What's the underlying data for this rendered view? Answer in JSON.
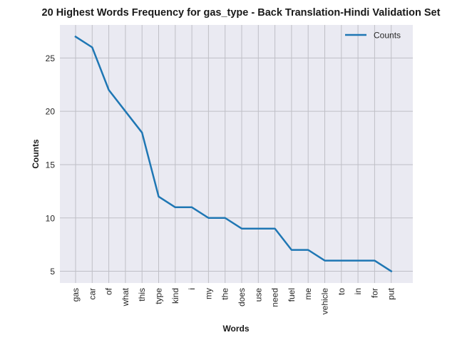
{
  "chart_data": {
    "type": "line",
    "title": "20 Highest Words Frequency for gas_type - Back Translation-Hindi Validation Set",
    "xlabel": "Words",
    "ylabel": "Counts",
    "categories": [
      "gas",
      "car",
      "of",
      "what",
      "this",
      "type",
      "kind",
      "i",
      "my",
      "the",
      "does",
      "use",
      "need",
      "fuel",
      "me",
      "vehicle",
      "to",
      "in",
      "for",
      "put"
    ],
    "series": [
      {
        "name": "Counts",
        "values": [
          27,
          26,
          22,
          20,
          18,
          12,
          11,
          11,
          10,
          10,
          9,
          9,
          9,
          7,
          7,
          6,
          6,
          6,
          6,
          5
        ],
        "color": "#1f77b4"
      }
    ],
    "ylim": [
      3.9,
      28.1
    ],
    "yticks": [
      5,
      10,
      15,
      20,
      25
    ],
    "grid": true,
    "legend": "top-right",
    "colors": {
      "plot_background": "#eaeaf2",
      "grid": "#bfbfc6",
      "line": "#1f77b4"
    }
  }
}
